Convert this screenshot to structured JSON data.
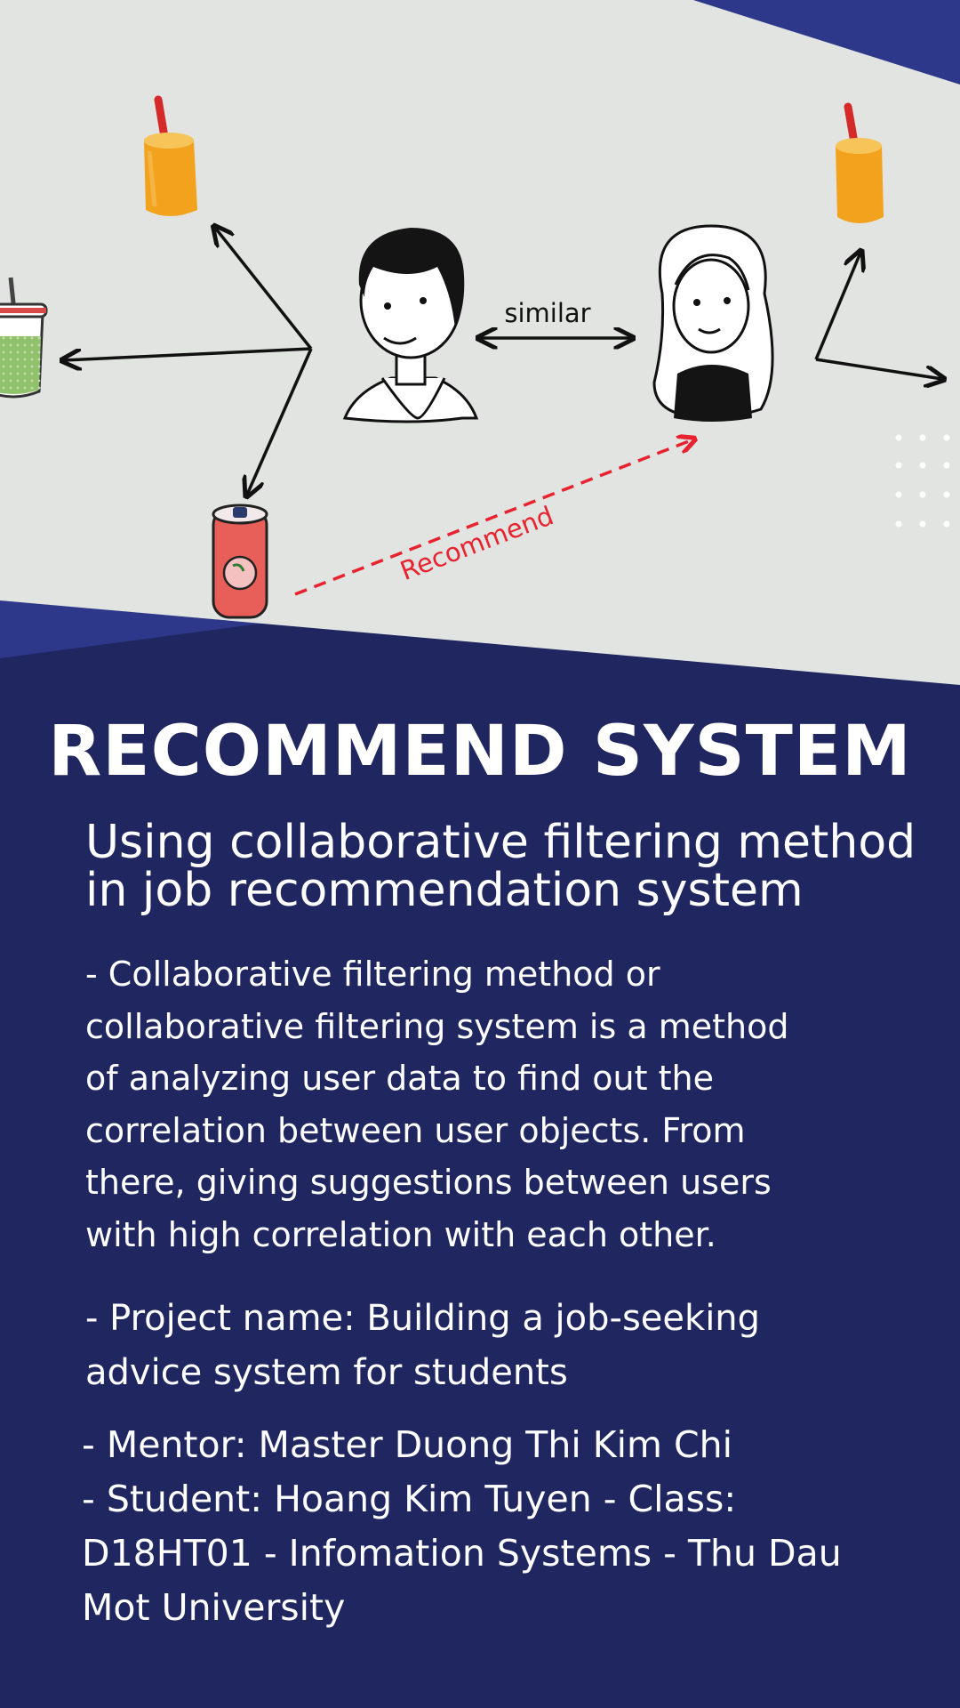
{
  "diagram": {
    "similar_label": "similar",
    "recommend_label": "Recommend",
    "colors": {
      "background": "#1f2660",
      "panel": "#e1e4e1",
      "recommend_arrow": "#e8232f",
      "accent_band": "#2e388a"
    },
    "icons": [
      "juice-cup-icon",
      "green-smoothie-icon",
      "peach-soda-can-icon",
      "man-avatar-icon",
      "woman-avatar-icon"
    ]
  },
  "title": "RECOMMEND SYSTEM",
  "subtitle": {
    "line1": "Using collaborative filtering method",
    "line2": "in job recommendation system"
  },
  "description": {
    "lines": [
      "- Collaborative filtering method or",
      "collaborative filtering system is a method",
      "of analyzing user data to find out the",
      "correlation between user objects. From",
      "there, giving suggestions between users",
      "with high correlation with each other."
    ]
  },
  "project": {
    "lines": [
      "- Project name: Building a job-seeking",
      "advice system for students"
    ]
  },
  "credits": {
    "lines": [
      "- Mentor: Master Duong Thi Kim Chi",
      "- Student: Hoang Kim Tuyen - Class:",
      "D18HT01 - Infomation Systems - Thu Dau",
      "Mot University"
    ]
  }
}
